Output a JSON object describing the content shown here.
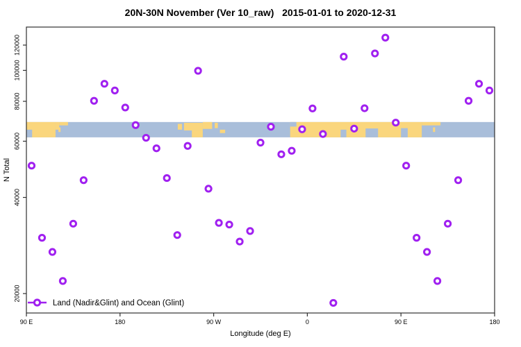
{
  "title": "20N-30N November (Ver 10_raw)   2015-01-01 to 2020-12-31",
  "chart_data": {
    "type": "scatter",
    "title": "20N-30N November (Ver 10_raw)   2015-01-01 to 2020-12-31",
    "xlabel": "Longitude (deg E)",
    "ylabel": "N Total",
    "y_scale": "log",
    "ylim": [
      17500,
      136000
    ],
    "y_ticks": [
      20000,
      40000,
      60000,
      80000,
      100000,
      120000
    ],
    "x_axis_deg_range": [
      90,
      540
    ],
    "x_ticks": [
      {
        "deg": 90,
        "label": "90 E"
      },
      {
        "deg": 180,
        "label": "180"
      },
      {
        "deg": 270,
        "label": "90 W"
      },
      {
        "deg": 360,
        "label": "0"
      },
      {
        "deg": 450,
        "label": "90 E"
      },
      {
        "deg": 540,
        "label": "180"
      }
    ],
    "legend": {
      "label": "Land (Nadir&Glint) and Ocean (Glint)",
      "position": "bottom-left"
    },
    "marker": {
      "shape": "open-circle",
      "color": "#A020F0"
    },
    "grid": false,
    "points": [
      {
        "deg": 95,
        "lon": "95 E",
        "value": 50300
      },
      {
        "deg": 105,
        "lon": "105 E",
        "value": 29900
      },
      {
        "deg": 115,
        "lon": "115 E",
        "value": 27000
      },
      {
        "deg": 125,
        "lon": "125 E",
        "value": 21900
      },
      {
        "deg": 135,
        "lon": "135 E",
        "value": 33100
      },
      {
        "deg": 145,
        "lon": "145 E",
        "value": 45300
      },
      {
        "deg": 155,
        "lon": "155 E",
        "value": 80300
      },
      {
        "deg": 165,
        "lon": "165 E",
        "value": 90800
      },
      {
        "deg": 175,
        "lon": "175 E",
        "value": 86500
      },
      {
        "deg": 185,
        "lon": "175 W",
        "value": 76500
      },
      {
        "deg": 195,
        "lon": "165 W",
        "value": 67400
      },
      {
        "deg": 205,
        "lon": "155 W",
        "value": 61500
      },
      {
        "deg": 215,
        "lon": "145 W",
        "value": 57000
      },
      {
        "deg": 225,
        "lon": "135 W",
        "value": 46000
      },
      {
        "deg": 235,
        "lon": "125 W",
        "value": 30500
      },
      {
        "deg": 245,
        "lon": "115 W",
        "value": 58000
      },
      {
        "deg": 255,
        "lon": "105 W",
        "value": 99700
      },
      {
        "deg": 265,
        "lon": "95 W",
        "value": 42600
      },
      {
        "deg": 275,
        "lon": "85 W",
        "value": 33300
      },
      {
        "deg": 285,
        "lon": "75 W",
        "value": 32900
      },
      {
        "deg": 295,
        "lon": "65 W",
        "value": 29100
      },
      {
        "deg": 305,
        "lon": "55 W",
        "value": 31400
      },
      {
        "deg": 315,
        "lon": "45 W",
        "value": 59400
      },
      {
        "deg": 325,
        "lon": "35 W",
        "value": 66600
      },
      {
        "deg": 335,
        "lon": "25 W",
        "value": 54600
      },
      {
        "deg": 345,
        "lon": "15 W",
        "value": 56000
      },
      {
        "deg": 355,
        "lon": "5 W",
        "value": 65400
      },
      {
        "deg": 365,
        "lon": "5 E",
        "value": 76000
      },
      {
        "deg": 375,
        "lon": "15 E",
        "value": 63200
      },
      {
        "deg": 385,
        "lon": "25 E",
        "value": 18700
      },
      {
        "deg": 395,
        "lon": "35 E",
        "value": 110400
      },
      {
        "deg": 405,
        "lon": "45 E",
        "value": 65700
      },
      {
        "deg": 415,
        "lon": "55 E",
        "value": 76100
      },
      {
        "deg": 425,
        "lon": "65 E",
        "value": 113000
      },
      {
        "deg": 435,
        "lon": "75 E",
        "value": 126600
      },
      {
        "deg": 445,
        "lon": "85 E",
        "value": 68600
      },
      {
        "deg": 455,
        "lon": "95 E",
        "value": 50300
      },
      {
        "deg": 465,
        "lon": "105 E",
        "value": 29900
      },
      {
        "deg": 475,
        "lon": "115 E",
        "value": 27000
      },
      {
        "deg": 485,
        "lon": "125 E",
        "value": 21900
      },
      {
        "deg": 495,
        "lon": "135 E",
        "value": 33100
      },
      {
        "deg": 505,
        "lon": "145 E",
        "value": 45300
      },
      {
        "deg": 515,
        "lon": "155 E",
        "value": 80300
      },
      {
        "deg": 525,
        "lon": "165 E",
        "value": 90800
      },
      {
        "deg": 535,
        "lon": "175 E",
        "value": 86500
      }
    ],
    "map_band": {
      "value_top": 68900,
      "value_bottom": 61700,
      "ocean_color": "#A9BEDA",
      "land_color": "#FAD67D",
      "land_segments": [
        {
          "d1": 90,
          "d2": 118,
          "f1": 0,
          "f2": 1
        },
        {
          "d1": 118,
          "d2": 121.5,
          "f1": 0,
          "f2": 0.5
        },
        {
          "d1": 121.5,
          "d2": 130,
          "f1": 0,
          "f2": 0.22
        },
        {
          "d1": 103,
          "d2": 107.5,
          "f1": 0.72,
          "f2": 1
        },
        {
          "d1": 120.8,
          "d2": 122.8,
          "f1": 0.35,
          "f2": 0.65
        },
        {
          "d1": 235.5,
          "d2": 239.5,
          "f1": 0.12,
          "f2": 0.5
        },
        {
          "d1": 241.5,
          "d2": 259.5,
          "f1": 0.05,
          "f2": 0.55
        },
        {
          "d1": 249,
          "d2": 259.5,
          "f1": 0.55,
          "f2": 1
        },
        {
          "d1": 259.5,
          "d2": 268.5,
          "f1": 0,
          "f2": 0.45
        },
        {
          "d1": 271,
          "d2": 274,
          "f1": 0.05,
          "f2": 0.4
        },
        {
          "d1": 276,
          "d2": 281,
          "f1": 0.5,
          "f2": 0.72
        },
        {
          "d1": 343.5,
          "d2": 470,
          "f1": 0,
          "f2": 1
        },
        {
          "d1": 470,
          "d2": 488,
          "f1": 0,
          "f2": 0.22
        },
        {
          "d1": 480.8,
          "d2": 482.8,
          "f1": 0.35,
          "f2": 0.65
        }
      ],
      "ocean_notches": [
        {
          "d1": 90,
          "d2": 95.5,
          "f1": 0.5,
          "f2": 1
        },
        {
          "d1": 343.5,
          "d2": 349.5,
          "f1": 0,
          "f2": 0.3
        },
        {
          "d1": 392,
          "d2": 397.5,
          "f1": 0.5,
          "f2": 1
        },
        {
          "d1": 416,
          "d2": 428,
          "f1": 0.42,
          "f2": 1
        },
        {
          "d1": 450,
          "d2": 456.5,
          "f1": 0.4,
          "f2": 1
        }
      ]
    },
    "colors": {
      "marker": "#A020F0",
      "box": "#2f2f2f",
      "text": "#000000",
      "background": "#ffffff"
    }
  }
}
